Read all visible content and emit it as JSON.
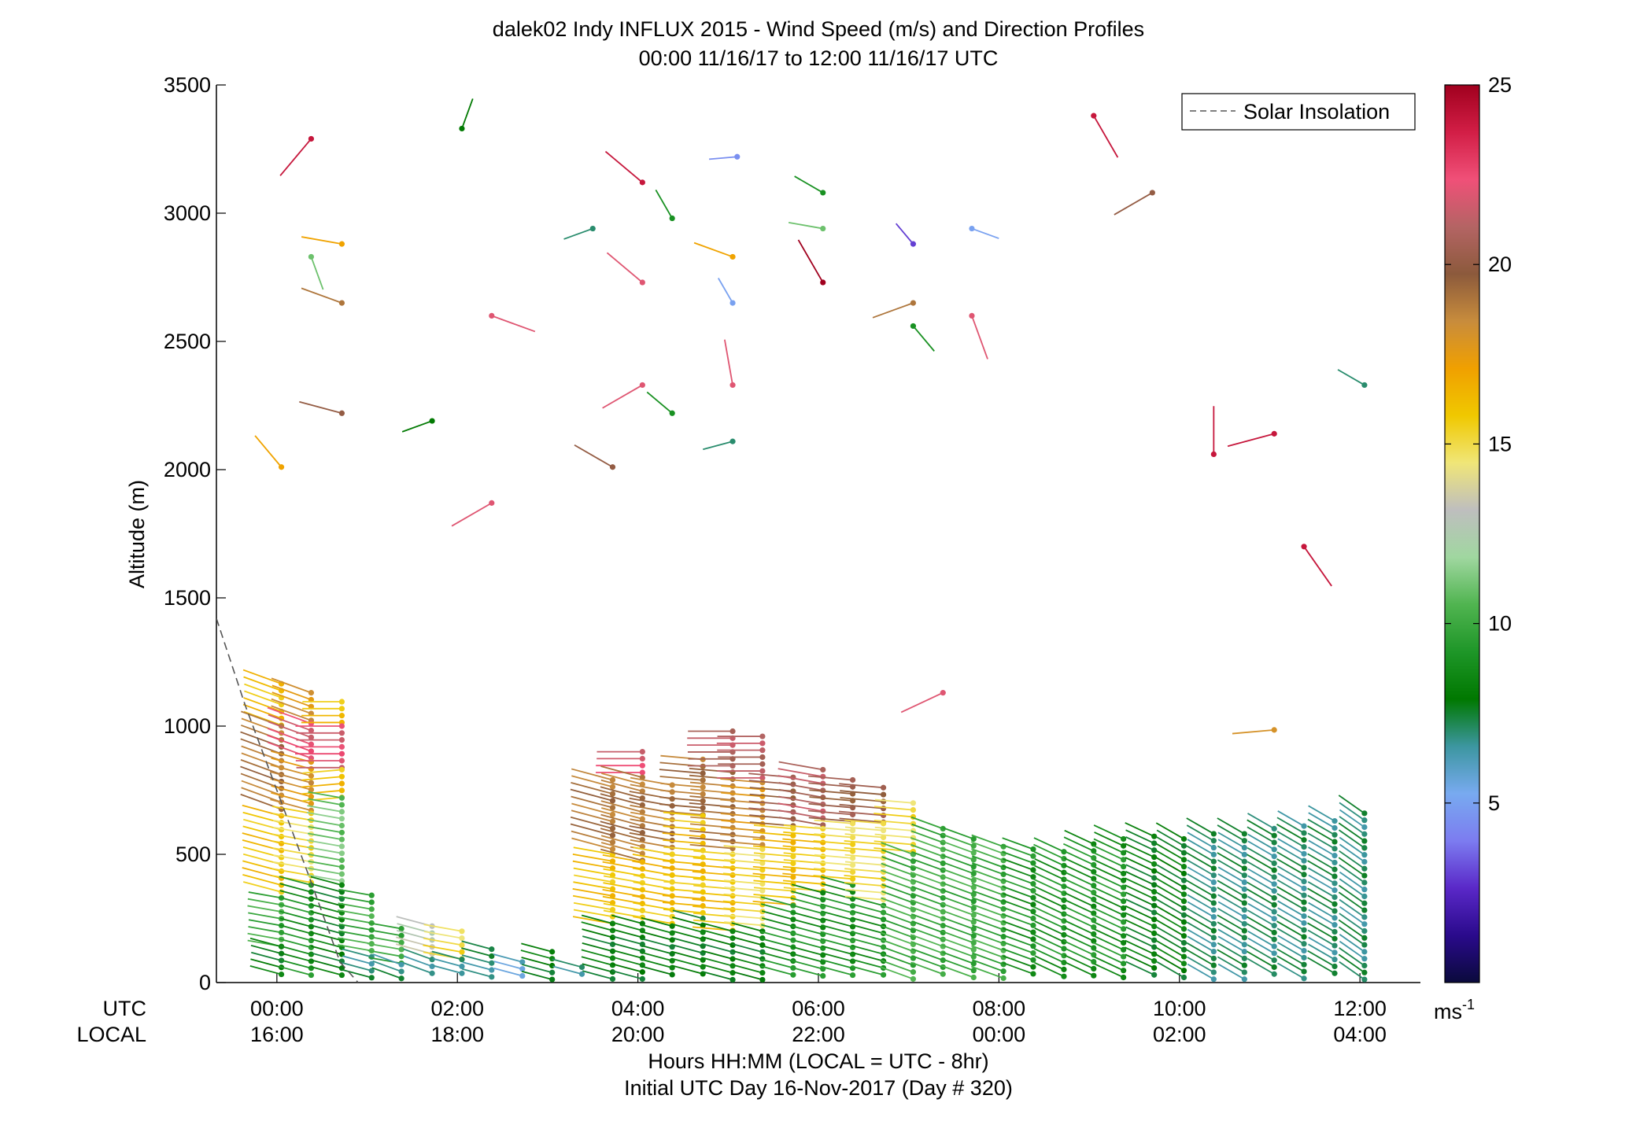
{
  "chart_data": {
    "type": "scatter",
    "title_line1": "dalek02 Indy INFLUX 2015 - Wind Speed (m/s) and Direction Profiles",
    "title_line2": "00:00 11/16/17 to 12:00 11/16/17  UTC",
    "ylabel": "Altitude (m)",
    "xlabel": "Hours HH:MM  (LOCAL = UTC - 8hr)",
    "footer": "Initial UTC Day 16-Nov-2017 (Day # 320)",
    "xlim_hours": [
      -0.67,
      12.67
    ],
    "ylim": [
      0,
      3500
    ],
    "yticks": [
      "0",
      "500",
      "1000",
      "1500",
      "2000",
      "2500",
      "3000",
      "3500"
    ],
    "xtick_row_labels": {
      "utc": "UTC",
      "local": "LOCAL"
    },
    "xticks_utc": [
      "00:00",
      "02:00",
      "04:00",
      "06:00",
      "08:00",
      "10:00",
      "12:00"
    ],
    "xticks_local": [
      "16:00",
      "18:00",
      "20:00",
      "22:00",
      "00:00",
      "02:00",
      "04:00"
    ],
    "legend": {
      "label": "Solar Insolation",
      "placement": "top-right"
    },
    "colorbar": {
      "range": [
        0,
        25
      ],
      "ticks": [
        "5",
        "10",
        "15",
        "20",
        "25"
      ],
      "units_base": "ms",
      "units_exp": "-1",
      "stops": [
        "#0a0a3c",
        "#2a0a8c",
        "#5a28c8",
        "#7c7cf0",
        "#78aaf0",
        "#3c96a0",
        "#007800",
        "#1e9628",
        "#50b450",
        "#a0d7a0",
        "#bebebe",
        "#f0e678",
        "#f0c800",
        "#f0a000",
        "#c88c3c",
        "#8c5a3c",
        "#b46464",
        "#f05078",
        "#d21e46",
        "#a0001e"
      ]
    },
    "solar_insolation_altitude_m": [
      [
        -0.67,
        1420
      ],
      [
        -0.35,
        1080
      ],
      [
        0.0,
        750
      ],
      [
        0.35,
        420
      ],
      [
        0.7,
        80
      ],
      [
        0.9,
        0
      ]
    ],
    "upper_barbs": [
      {
        "t": 0.38,
        "alt": 3290,
        "ws": 24,
        "dir": 220
      },
      {
        "t": 2.05,
        "alt": 3330,
        "ws": 8,
        "dir": 20
      },
      {
        "t": 5.1,
        "alt": 3220,
        "ws": 4.5,
        "dir": 265
      },
      {
        "t": 4.05,
        "alt": 3120,
        "ws": 24,
        "dir": 310
      },
      {
        "t": 4.38,
        "alt": 2980,
        "ws": 9,
        "dir": 330
      },
      {
        "t": 3.5,
        "alt": 2940,
        "ws": 7,
        "dir": 250
      },
      {
        "t": 6.05,
        "alt": 3080,
        "ws": 9,
        "dir": 300
      },
      {
        "t": 6.05,
        "alt": 2940,
        "ws": 11,
        "dir": 280
      },
      {
        "t": 7.05,
        "alt": 2880,
        "ws": 3,
        "dir": 320
      },
      {
        "t": 7.7,
        "alt": 2940,
        "ws": 5,
        "dir": 110
      },
      {
        "t": 9.05,
        "alt": 3380,
        "ws": 24,
        "dir": 150
      },
      {
        "t": 9.7,
        "alt": 3080,
        "ws": 20,
        "dir": 240
      },
      {
        "t": 0.72,
        "alt": 2880,
        "ws": 17,
        "dir": 280
      },
      {
        "t": 0.38,
        "alt": 2830,
        "ws": 11,
        "dir": 160
      },
      {
        "t": 0.72,
        "alt": 2650,
        "ws": 19,
        "dir": 290
      },
      {
        "t": 2.38,
        "alt": 2600,
        "ws": 22,
        "dir": 110
      },
      {
        "t": 4.05,
        "alt": 2730,
        "ws": 22,
        "dir": 310
      },
      {
        "t": 5.05,
        "alt": 2830,
        "ws": 17,
        "dir": 290
      },
      {
        "t": 5.05,
        "alt": 2650,
        "ws": 5,
        "dir": 330
      },
      {
        "t": 6.05,
        "alt": 2730,
        "ws": 25,
        "dir": 330
      },
      {
        "t": 7.05,
        "alt": 2650,
        "ws": 19,
        "dir": 250
      },
      {
        "t": 7.05,
        "alt": 2560,
        "ws": 9,
        "dir": 140
      },
      {
        "t": 7.7,
        "alt": 2600,
        "ws": 22,
        "dir": 160
      },
      {
        "t": 4.05,
        "alt": 2330,
        "ws": 22,
        "dir": 240
      },
      {
        "t": 4.38,
        "alt": 2220,
        "ws": 9,
        "dir": 310
      },
      {
        "t": 5.05,
        "alt": 2330,
        "ws": 22,
        "dir": 350
      },
      {
        "t": 5.05,
        "alt": 2110,
        "ws": 7,
        "dir": 255
      },
      {
        "t": 0.72,
        "alt": 2220,
        "ws": 20,
        "dir": 285
      },
      {
        "t": 1.72,
        "alt": 2190,
        "ws": 8,
        "dir": 250
      },
      {
        "t": 0.05,
        "alt": 2010,
        "ws": 17,
        "dir": 320
      },
      {
        "t": 3.72,
        "alt": 2010,
        "ws": 20,
        "dir": 300
      },
      {
        "t": 2.38,
        "alt": 1870,
        "ws": 22,
        "dir": 240
      },
      {
        "t": 12.05,
        "alt": 2330,
        "ws": 7,
        "dir": 300
      },
      {
        "t": 10.38,
        "alt": 2060,
        "ws": 24,
        "dir": 0
      },
      {
        "t": 11.05,
        "alt": 2140,
        "ws": 24,
        "dir": 255
      },
      {
        "t": 11.38,
        "alt": 1700,
        "ws": 24,
        "dir": 145
      },
      {
        "t": 7.38,
        "alt": 1130,
        "ws": 22,
        "dir": 245
      },
      {
        "t": 11.05,
        "alt": 985,
        "ws": 18,
        "dir": 265
      }
    ],
    "profile_columns": [
      {
        "t": 0.05,
        "top": 1165,
        "layers": [
          [
            1165,
            1000,
            16,
            290
          ],
          [
            1000,
            650,
            19,
            290
          ],
          [
            650,
            330,
            16,
            285
          ],
          [
            330,
            140,
            10,
            280
          ],
          [
            140,
            0,
            8,
            285
          ]
        ]
      },
      {
        "t": 0.38,
        "top": 1130,
        "layers": [
          [
            1130,
            1010,
            18,
            290
          ],
          [
            1010,
            860,
            22,
            290
          ],
          [
            860,
            660,
            18,
            285
          ],
          [
            660,
            380,
            15,
            280
          ],
          [
            380,
            0,
            9,
            285
          ]
        ]
      },
      {
        "t": 0.72,
        "top": 1095,
        "layers": [
          [
            1095,
            1000,
            16,
            270
          ],
          [
            1000,
            830,
            22,
            270
          ],
          [
            830,
            720,
            16,
            265
          ],
          [
            720,
            380,
            11,
            280
          ],
          [
            380,
            0,
            8,
            285
          ]
        ]
      },
      {
        "t": 1.05,
        "top": 340,
        "layers": [
          [
            340,
            100,
            10,
            280
          ],
          [
            100,
            0,
            7,
            285
          ]
        ]
      },
      {
        "t": 1.38,
        "top": 210,
        "layers": [
          [
            210,
            70,
            10,
            280
          ],
          [
            70,
            0,
            7,
            290
          ]
        ]
      },
      {
        "t": 1.72,
        "top": 220,
        "layers": [
          [
            220,
            90,
            13,
            285
          ],
          [
            90,
            0,
            7,
            290
          ]
        ]
      },
      {
        "t": 2.05,
        "top": 200,
        "layers": [
          [
            200,
            90,
            15,
            280
          ],
          [
            90,
            0,
            7,
            285
          ]
        ]
      },
      {
        "t": 2.38,
        "top": 130,
        "layers": [
          [
            130,
            0,
            7,
            285
          ]
        ]
      },
      {
        "t": 2.72,
        "top": 80,
        "layers": [
          [
            80,
            0,
            6,
            285
          ]
        ]
      },
      {
        "t": 3.05,
        "top": 120,
        "layers": [
          [
            120,
            0,
            8,
            285
          ]
        ]
      },
      {
        "t": 3.38,
        "top": 60,
        "layers": [
          [
            60,
            0,
            7,
            285
          ]
        ]
      },
      {
        "t": 3.72,
        "top": 790,
        "layers": [
          [
            790,
            500,
            19,
            285
          ],
          [
            500,
            230,
            16,
            280
          ],
          [
            230,
            0,
            8,
            285
          ]
        ]
      },
      {
        "t": 4.05,
        "top": 900,
        "layers": [
          [
            900,
            800,
            22,
            270
          ],
          [
            800,
            470,
            19,
            285
          ],
          [
            470,
            230,
            16,
            280
          ],
          [
            230,
            0,
            8,
            285
          ]
        ]
      },
      {
        "t": 4.38,
        "top": 770,
        "layers": [
          [
            770,
            500,
            19,
            280
          ],
          [
            500,
            220,
            16,
            280
          ],
          [
            220,
            0,
            8,
            285
          ]
        ]
      },
      {
        "t": 4.72,
        "top": 870,
        "layers": [
          [
            870,
            650,
            19,
            275
          ],
          [
            650,
            250,
            16,
            275
          ],
          [
            250,
            0,
            8,
            285
          ]
        ]
      },
      {
        "t": 5.05,
        "top": 980,
        "layers": [
          [
            980,
            820,
            21,
            270
          ],
          [
            820,
            500,
            19,
            275
          ],
          [
            500,
            200,
            16,
            275
          ],
          [
            200,
            0,
            8,
            285
          ]
        ]
      },
      {
        "t": 5.38,
        "top": 960,
        "layers": [
          [
            960,
            780,
            21,
            270
          ],
          [
            780,
            520,
            18,
            275
          ],
          [
            520,
            200,
            15,
            275
          ],
          [
            200,
            0,
            8,
            285
          ]
        ]
      },
      {
        "t": 5.72,
        "top": 800,
        "layers": [
          [
            800,
            600,
            20,
            275
          ],
          [
            600,
            300,
            16,
            275
          ],
          [
            300,
            0,
            9,
            285
          ]
        ]
      },
      {
        "t": 6.05,
        "top": 830,
        "layers": [
          [
            830,
            600,
            21,
            280
          ],
          [
            600,
            350,
            16,
            275
          ],
          [
            350,
            0,
            9,
            285
          ]
        ]
      },
      {
        "t": 6.38,
        "top": 790,
        "layers": [
          [
            790,
            620,
            20,
            275
          ],
          [
            620,
            380,
            15,
            275
          ],
          [
            380,
            0,
            9,
            285
          ]
        ]
      },
      {
        "t": 6.72,
        "top": 760,
        "layers": [
          [
            760,
            620,
            20,
            275
          ],
          [
            620,
            300,
            15,
            275
          ],
          [
            300,
            0,
            9,
            285
          ]
        ]
      },
      {
        "t": 7.05,
        "top": 700,
        "layers": [
          [
            700,
            500,
            15,
            275
          ],
          [
            500,
            0,
            10,
            290
          ]
        ]
      },
      {
        "t": 7.38,
        "top": 600,
        "layers": [
          [
            600,
            0,
            10,
            290
          ]
        ]
      },
      {
        "t": 7.72,
        "top": 560,
        "layers": [
          [
            560,
            0,
            10,
            290
          ]
        ]
      },
      {
        "t": 8.05,
        "top": 530,
        "layers": [
          [
            530,
            0,
            10,
            290
          ]
        ]
      },
      {
        "t": 8.38,
        "top": 520,
        "layers": [
          [
            520,
            0,
            9,
            290
          ]
        ]
      },
      {
        "t": 8.72,
        "top": 510,
        "layers": [
          [
            510,
            0,
            9,
            295
          ]
        ]
      },
      {
        "t": 9.05,
        "top": 540,
        "layers": [
          [
            540,
            0,
            9,
            295
          ]
        ]
      },
      {
        "t": 9.38,
        "top": 560,
        "layers": [
          [
            560,
            0,
            9,
            295
          ]
        ]
      },
      {
        "t": 9.72,
        "top": 570,
        "layers": [
          [
            570,
            0,
            8,
            295
          ]
        ]
      },
      {
        "t": 10.05,
        "top": 560,
        "layers": [
          [
            560,
            0,
            8,
            300
          ]
        ]
      },
      {
        "t": 10.38,
        "top": 580,
        "layers": [
          [
            580,
            0,
            7,
            300
          ]
        ]
      },
      {
        "t": 10.72,
        "top": 580,
        "layers": [
          [
            580,
            0,
            7,
            300
          ]
        ]
      },
      {
        "t": 11.05,
        "top": 600,
        "layers": [
          [
            600,
            0,
            7,
            300
          ]
        ]
      },
      {
        "t": 11.38,
        "top": 610,
        "layers": [
          [
            610,
            0,
            7,
            300
          ]
        ]
      },
      {
        "t": 11.72,
        "top": 630,
        "layers": [
          [
            630,
            0,
            7,
            300
          ]
        ]
      },
      {
        "t": 12.05,
        "top": 660,
        "layers": [
          [
            660,
            0,
            7,
            305
          ]
        ]
      }
    ]
  }
}
